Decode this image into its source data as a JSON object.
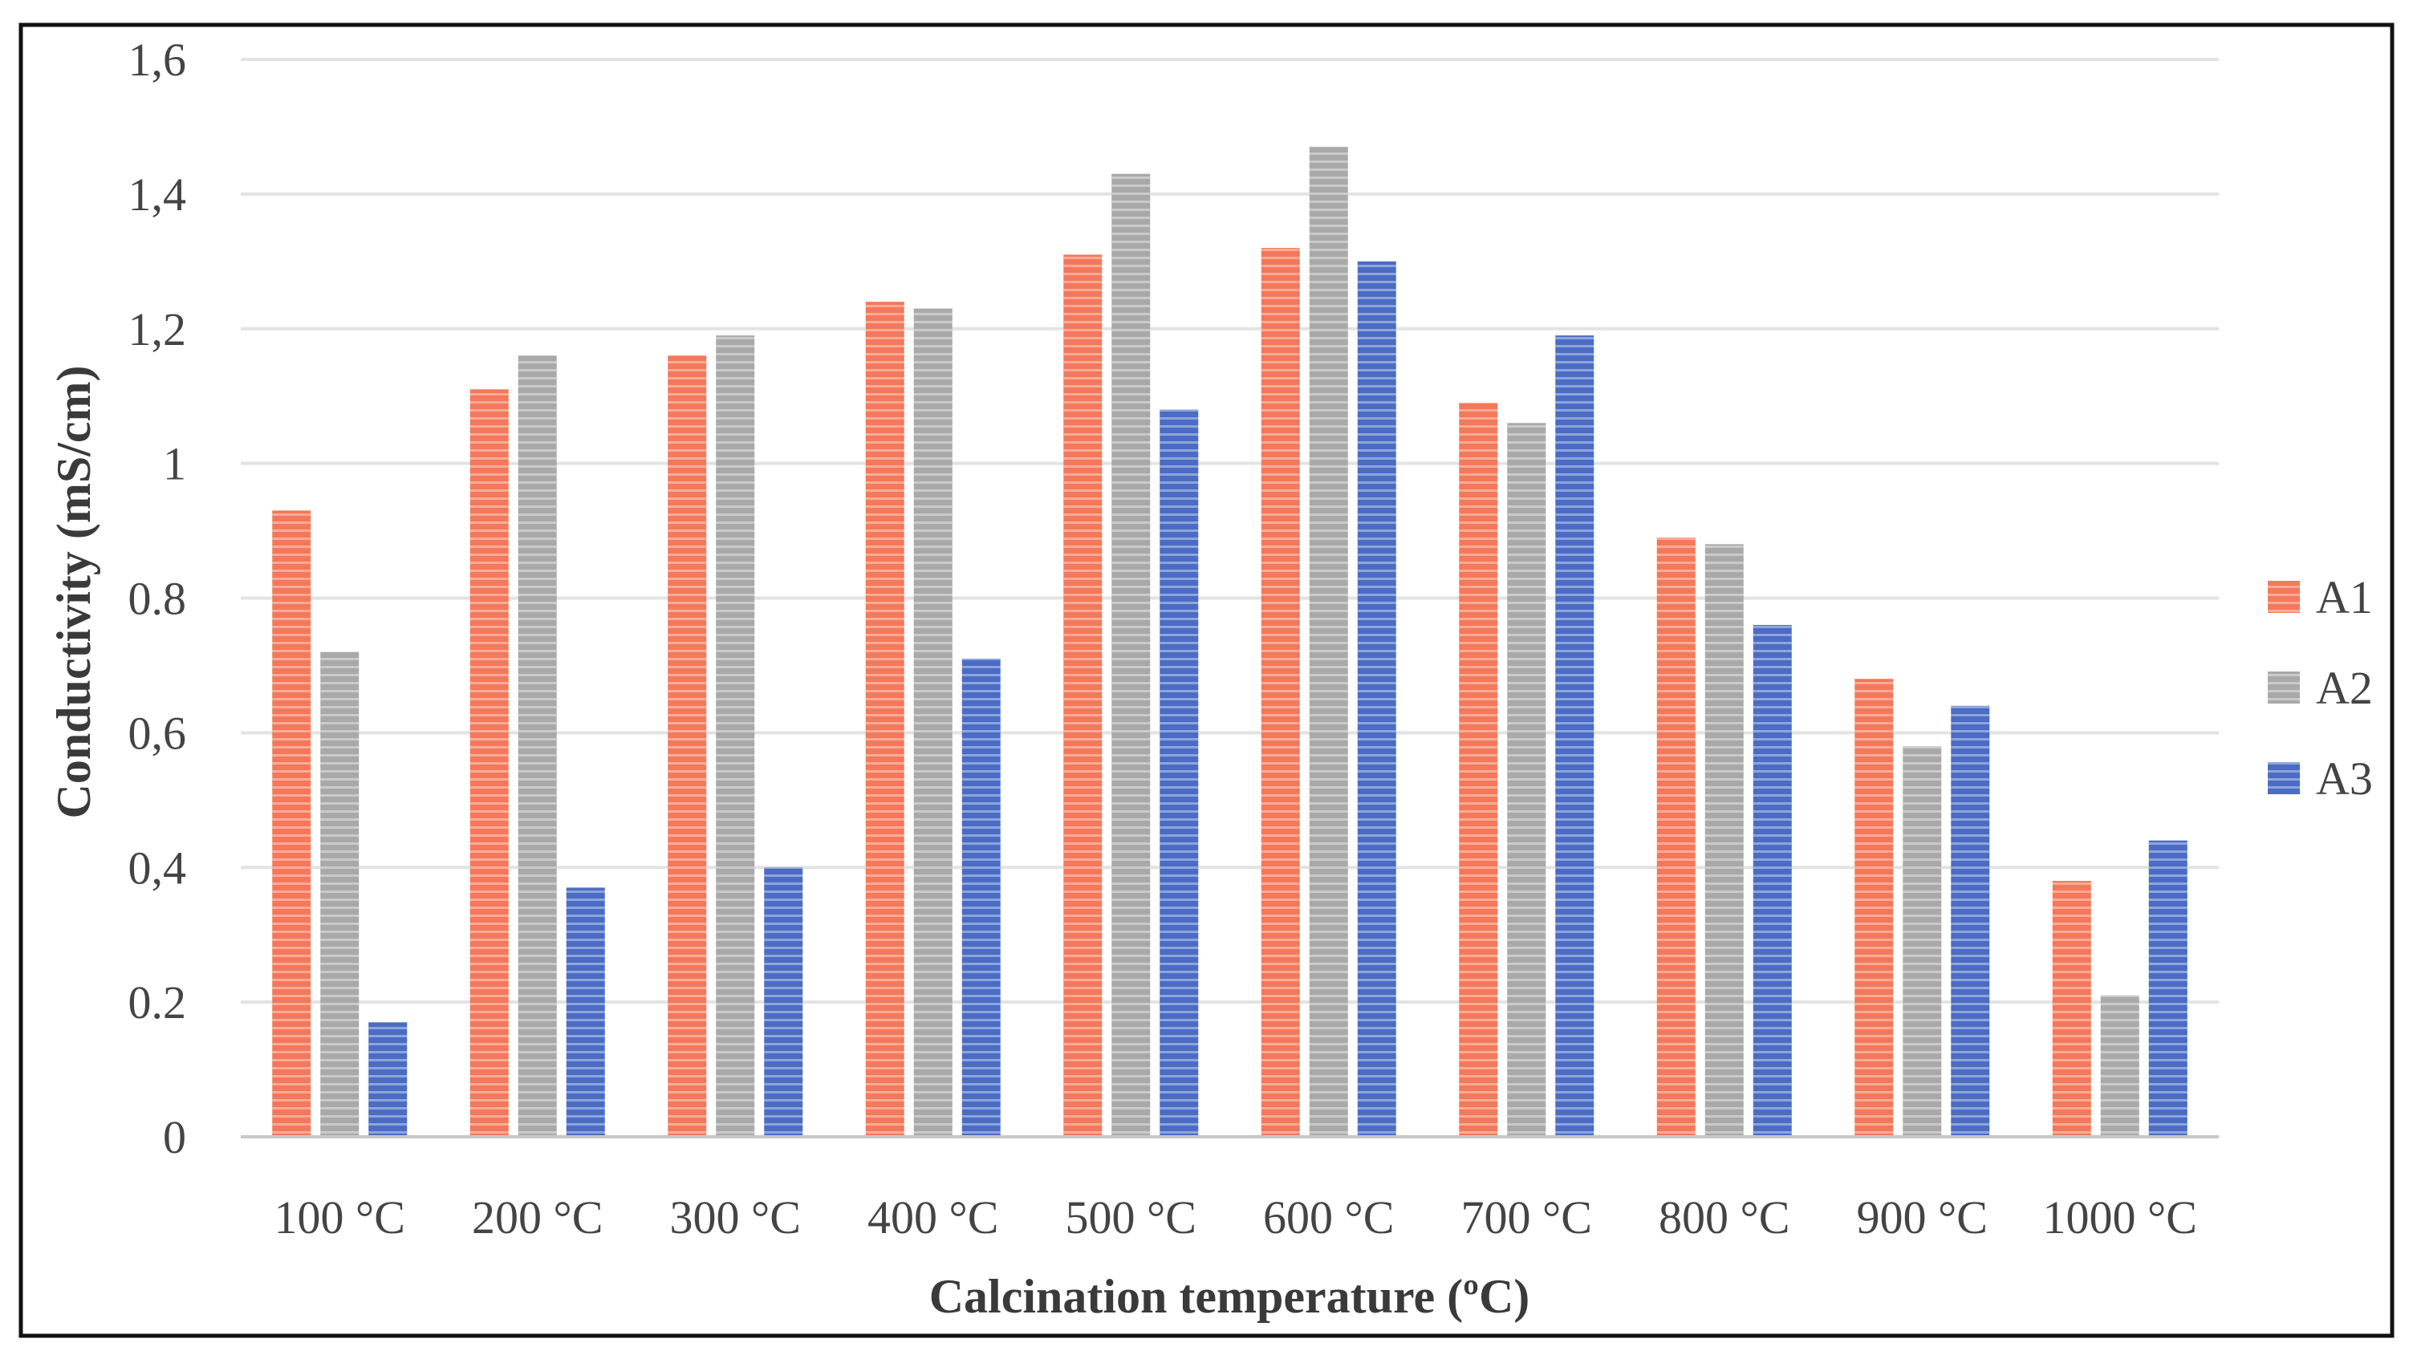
{
  "chart_data": {
    "type": "bar",
    "title": "",
    "xlabel": "Calcination temperature (ºC)",
    "ylabel": "Conductivity (mS/cm)",
    "categories": [
      "100 °C",
      "200 °C",
      "300 °C",
      "400 °C",
      "500 °C",
      "600 °C",
      "700 °C",
      "800 °C",
      "900 °C",
      "1000 °C"
    ],
    "ylim": [
      0,
      1.6
    ],
    "yticks": [
      0,
      0.2,
      0.4,
      0.6,
      0.8,
      1,
      1.2,
      1.4,
      1.6
    ],
    "ytick_labels": [
      "0",
      "0.2",
      "0,4",
      "0,6",
      "0.8",
      "1",
      "1,2",
      "1,4",
      "1,6"
    ],
    "grid": true,
    "legend_position": "right",
    "series": [
      {
        "name": "A1",
        "color": "#f4785a",
        "values": [
          0.93,
          1.11,
          1.16,
          1.24,
          1.31,
          1.32,
          1.09,
          0.89,
          0.68,
          0.38
        ]
      },
      {
        "name": "A2",
        "color": "#a9a9a9",
        "values": [
          0.72,
          1.16,
          1.19,
          1.23,
          1.43,
          1.47,
          1.06,
          0.88,
          0.58,
          0.21
        ]
      },
      {
        "name": "A3",
        "color": "#4b6cc4",
        "values": [
          0.17,
          0.37,
          0.4,
          0.71,
          1.08,
          1.3,
          1.19,
          0.76,
          0.64,
          0.44
        ]
      }
    ]
  }
}
